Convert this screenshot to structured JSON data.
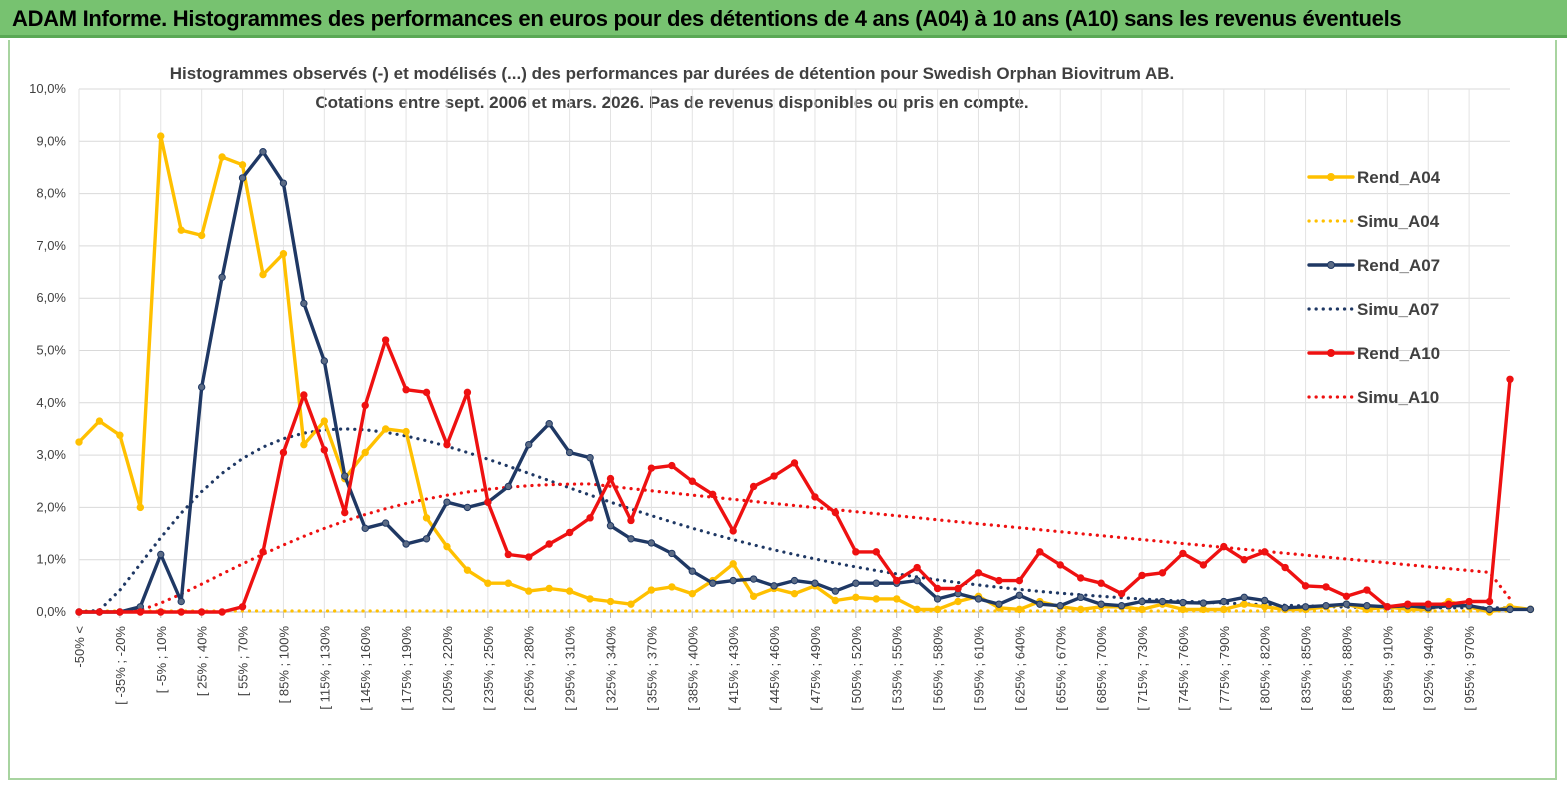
{
  "banner": {
    "title": "ADAM Informe. Histogrammes des performances en euros pour des détentions de 4 ans (A04) à 10 ans (A10) sans les revenus éventuels",
    "color": "#77c270"
  },
  "chart_data": {
    "type": "line",
    "title_line1": "Histogrammes observés (-) et modélisés (...) des performances par durées de détention pour Swedish Orphan Biovitrum AB.",
    "title_line2": "Cotations entre sept. 2006 et mars. 2026. Pas de revenus disponibles ou pris en compte.",
    "ylim": [
      0,
      10
    ],
    "y_ticks": [
      "0,0%",
      "1,0%",
      "2,0%",
      "3,0%",
      "4,0%",
      "5,0%",
      "6,0%",
      "7,0%",
      "8,0%",
      "9,0%",
      "10,0%"
    ],
    "x_tick_labels": [
      "-50% <",
      "[ -35% ; -20%",
      "[ -5% ; 10%",
      "[ 25% ; 40%",
      "[ 55% ; 70%",
      "[ 85% ; 100%",
      "[ 115% ; 130%",
      "[ 145% ; 160%",
      "[ 175% ; 190%",
      "[ 205% ; 220%",
      "[ 235% ; 250%",
      "[ 265% ; 280%",
      "[ 295% ; 310%",
      "[ 325% ; 340%",
      "[ 355% ; 370%",
      "[ 385% ; 400%",
      "[ 415% ; 430%",
      "[ 445% ; 460%",
      "[ 475% ; 490%",
      "[ 505% ; 520%",
      "[ 535% ; 550%",
      "[ 565% ; 580%",
      "[ 595% ; 610%",
      "[ 625% ; 640%",
      "[ 655% ; 670%",
      "[ 685% ; 700%",
      "[ 715% ; 730%",
      "[ 745% ; 760%",
      "[ 775% ; 790%",
      "[ 805% ; 820%",
      "[ 835% ; 850%",
      "[ 865% ; 880%",
      "[ 895% ; 910%",
      "[ 925% ; 940%",
      "[ 955% ; 970%"
    ],
    "grid": true,
    "legend_position": "right",
    "series": [
      {
        "name": "Rend_A04",
        "color": "#ffc000",
        "style": "solid",
        "markers": true,
        "values": [
          3.25,
          3.65,
          3.38,
          2.0,
          9.1,
          7.3,
          7.2,
          8.7,
          8.55,
          6.45,
          6.85,
          3.2,
          3.65,
          2.55,
          3.05,
          3.5,
          3.45,
          1.8,
          1.25,
          0.8,
          0.55,
          0.55,
          0.4,
          0.45,
          0.4,
          0.25,
          0.2,
          0.15,
          0.42,
          0.48,
          0.35,
          0.6,
          0.92,
          0.3,
          0.45,
          0.35,
          0.5,
          0.22,
          0.28,
          0.25,
          0.25,
          0.05,
          0.05,
          0.2,
          0.3,
          0.08,
          0.05,
          0.2,
          0.1,
          0.05,
          0.1,
          0.1,
          0.05,
          0.15,
          0.05,
          0.05,
          0.05,
          0.15,
          0.1,
          0.05,
          0.05,
          0.1,
          0.15,
          0.05,
          0.1,
          0.05,
          0.05,
          0.2,
          0.1,
          0.0,
          0.1,
          0.05
        ]
      },
      {
        "name": "Simu_A04",
        "color": "#ffc000",
        "style": "dotted",
        "markers": false,
        "constant": 0.02
      },
      {
        "name": "Rend_A07",
        "color": "#1f3864",
        "style": "solid",
        "markers": true,
        "values": [
          0.0,
          0.0,
          0.0,
          0.1,
          1.1,
          0.2,
          4.3,
          6.4,
          8.3,
          8.8,
          8.2,
          5.9,
          4.8,
          2.6,
          1.6,
          1.7,
          1.3,
          1.4,
          2.1,
          2.0,
          2.1,
          2.4,
          3.2,
          3.6,
          3.05,
          2.95,
          1.65,
          1.4,
          1.32,
          1.12,
          0.78,
          0.55,
          0.6,
          0.63,
          0.5,
          0.6,
          0.55,
          0.4,
          0.55,
          0.55,
          0.55,
          0.6,
          0.25,
          0.35,
          0.25,
          0.15,
          0.32,
          0.15,
          0.12,
          0.28,
          0.15,
          0.12,
          0.2,
          0.2,
          0.18,
          0.17,
          0.2,
          0.28,
          0.22,
          0.08,
          0.1,
          0.12,
          0.15,
          0.12,
          0.1,
          0.12,
          0.08,
          0.12,
          0.12,
          0.05,
          0.05,
          0.05
        ]
      },
      {
        "name": "Simu_A07",
        "color": "#1f3864",
        "style": "dotted",
        "markers": false,
        "peak_x": 13,
        "peak_y": 3.5,
        "start_x": 0.8,
        "tail_y": 0.08
      },
      {
        "name": "Rend_A10",
        "color": "#ee1111",
        "style": "solid",
        "markers": true,
        "values": [
          0.0,
          0.0,
          0.0,
          0.0,
          0.0,
          0.0,
          0.0,
          0.0,
          0.1,
          1.15,
          3.05,
          4.15,
          3.1,
          1.9,
          3.95,
          5.2,
          4.25,
          4.2,
          3.2,
          4.2,
          2.1,
          1.1,
          1.05,
          1.3,
          1.52,
          1.8,
          2.55,
          1.75,
          2.75,
          2.8,
          2.5,
          2.25,
          1.55,
          2.4,
          2.6,
          2.85,
          2.2,
          1.9,
          1.15,
          1.15,
          0.6,
          0.85,
          0.45,
          0.45,
          0.75,
          0.6,
          0.6,
          1.15,
          0.9,
          0.65,
          0.55,
          0.35,
          0.7,
          0.75,
          1.12,
          0.9,
          1.25,
          1.0,
          1.15,
          0.85,
          0.5,
          0.48,
          0.3,
          0.42,
          0.1,
          0.15,
          0.15,
          0.15,
          0.2,
          0.2,
          4.45
        ]
      },
      {
        "name": "Simu_A10",
        "color": "#ee1111",
        "style": "dotted",
        "markers": false,
        "peak_x": 25,
        "peak_y": 2.45,
        "start_x": 2.5,
        "end_y": 0.72
      }
    ]
  }
}
